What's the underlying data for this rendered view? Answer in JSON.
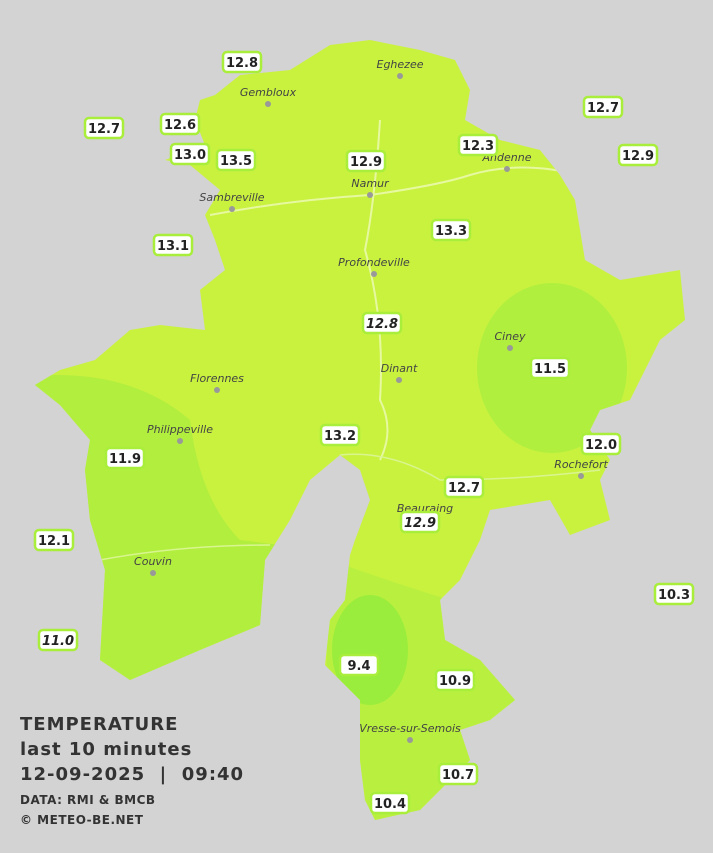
{
  "legend": {
    "title": "TEMPERATURE",
    "period": "last 10 minutes",
    "datetime": "12-09-2025  |  09:40",
    "source": "DATA: RMI & BMCB",
    "credit": "© METEO-BE.NET"
  },
  "towns": [
    "Eghezee",
    "Gembloux",
    "Andenne",
    "Namur",
    "Sambreville",
    "Profondeville",
    "Ciney",
    "Florennes",
    "Dinant",
    "Philippeville",
    "Rochefort",
    "Beauraing",
    "Couvin",
    "Vresse-sur-Semois"
  ],
  "stations": [
    {
      "value": "12.8"
    },
    {
      "value": "12.7"
    },
    {
      "value": "12.6"
    },
    {
      "value": "13.0"
    },
    {
      "value": "13.5"
    },
    {
      "value": "12.9"
    },
    {
      "value": "12.3"
    },
    {
      "value": "12.7"
    },
    {
      "value": "12.9"
    },
    {
      "value": "13.1"
    },
    {
      "value": "13.3"
    },
    {
      "value": "12.8",
      "italic": true
    },
    {
      "value": "11.5"
    },
    {
      "value": "11.9"
    },
    {
      "value": "13.2"
    },
    {
      "value": "12.0"
    },
    {
      "value": "12.7"
    },
    {
      "value": "12.9",
      "italic": true
    },
    {
      "value": "12.1"
    },
    {
      "value": "10.3"
    },
    {
      "value": "11.0",
      "italic": true
    },
    {
      "value": "9.4"
    },
    {
      "value": "10.9"
    },
    {
      "value": "10.7"
    },
    {
      "value": "10.4"
    }
  ]
}
